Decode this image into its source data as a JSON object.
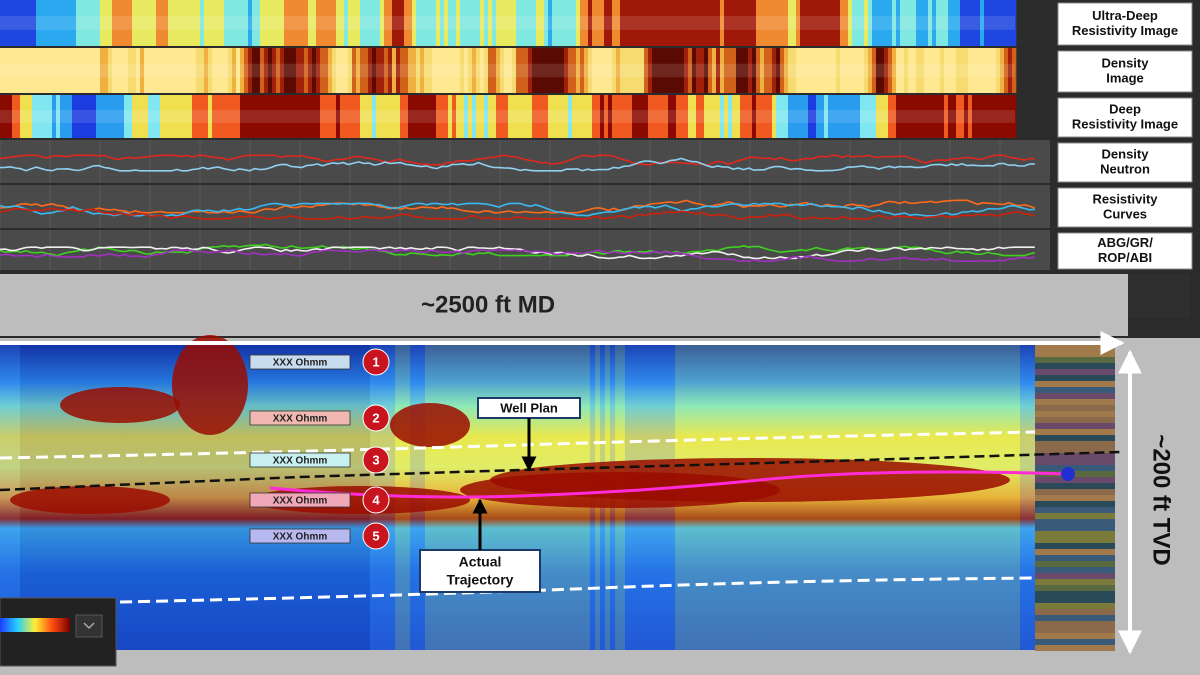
{
  "tracks": [
    {
      "label": [
        "Ultra-Deep",
        "Resistivity Image"
      ]
    },
    {
      "label": [
        "Density",
        "Image"
      ]
    },
    {
      "label": [
        "Deep",
        "Resistivity Image"
      ]
    },
    {
      "label": [
        "Density",
        "Neutron"
      ]
    },
    {
      "label": [
        "Resistivity",
        "Curves"
      ]
    },
    {
      "label": [
        "ABG/GR/",
        "ROP/ABI"
      ]
    }
  ],
  "md_label": "~2500 ft MD",
  "tvd_label": "~200 ft TVD",
  "zones": [
    {
      "number": "1",
      "label": "XXX Ohmm"
    },
    {
      "number": "2",
      "label": "XXX Ohmm"
    },
    {
      "number": "3",
      "label": "XXX Ohmm"
    },
    {
      "number": "4",
      "label": "XXX Ohmm"
    },
    {
      "number": "5",
      "label": "XXX Ohmm"
    }
  ],
  "well_plan": "Well Plan",
  "actual_trajectory": [
    "Actual",
    "Trajectory"
  ]
}
